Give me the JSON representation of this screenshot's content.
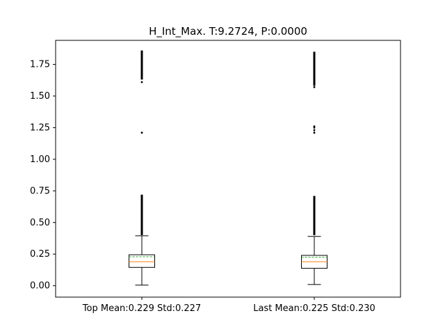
{
  "chart_data": {
    "type": "boxplot",
    "title": "H_Int_Max. T:9.2724, P:0.0000",
    "xlabel": "",
    "ylabel": "",
    "ylim": [
      -0.09,
      1.94
    ],
    "yticks": [
      0.0,
      0.25,
      0.5,
      0.75,
      1.0,
      1.25,
      1.5,
      1.75
    ],
    "ytick_labels": [
      "0.00",
      "0.25",
      "0.50",
      "0.75",
      "1.00",
      "1.25",
      "1.50",
      "1.75"
    ],
    "grid": false,
    "show_mean_line": true,
    "colors": {
      "median": "#ff7f0e",
      "mean": "#2ca02c",
      "box": "#000000"
    },
    "categories": [
      "Top Mean:0.229 Std:0.227",
      "Last Mean:0.225 Std:0.230"
    ],
    "series": [
      {
        "whisker_low": 0.005,
        "q1": 0.145,
        "median": 0.19,
        "q3": 0.245,
        "whisker_high": 0.395,
        "mean": 0.229,
        "outlier_ranges": [
          [
            0.4,
            0.72
          ],
          [
            1.63,
            1.86
          ]
        ],
        "outliers": [
          1.21,
          1.61
        ]
      },
      {
        "whisker_low": 0.01,
        "q1": 0.138,
        "median": 0.19,
        "q3": 0.24,
        "whisker_high": 0.39,
        "mean": 0.225,
        "outlier_ranges": [
          [
            0.4,
            0.71
          ],
          [
            1.58,
            1.85
          ]
        ],
        "outliers": [
          1.21,
          1.23,
          1.25,
          1.26,
          1.57
        ]
      }
    ]
  }
}
